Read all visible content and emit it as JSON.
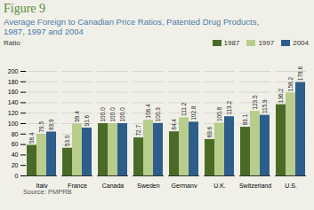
{
  "chart_data": {
    "type": "bar",
    "title": "Figure 9",
    "subtitle": "Average Foreign to Canadian Price Ratios, Patented Drug Products,\n1987, 1997 and 2004",
    "ylabel": "Ratio",
    "caption": "Source: PMPRB",
    "categories": [
      "Italy",
      "France",
      "Canada",
      "Sweden",
      "Germany",
      "U.K.",
      "Switzerland",
      "U.S."
    ],
    "series": [
      {
        "name": "1987",
        "color": "#4a6b28",
        "values": [
          58.4,
          53.0,
          100.0,
          72.7,
          84.4,
          69.6,
          93.1,
          136.2
        ],
        "value_labels": [
          "58.4",
          "53.0",
          "100.0",
          "72.7",
          "84.4",
          "69.6",
          "93.1",
          "136.2"
        ]
      },
      {
        "name": "1997",
        "color": "#b8cc8c",
        "values": [
          79.5,
          99.4,
          100.0,
          106.4,
          111.2,
          100.8,
          123.5,
          158.2
        ],
        "value_labels": [
          "79.5",
          "99.4",
          "100.0",
          "106.4",
          "111.2",
          "100.8",
          "123.5",
          "158.2"
        ]
      },
      {
        "name": "2004",
        "color": "#2d5d8a",
        "values": [
          83.9,
          91.6,
          100.0,
          100.3,
          102.8,
          113.2,
          115.9,
          178.6
        ],
        "value_labels": [
          "83.9",
          "91.6",
          "100.0",
          "100.3",
          "102.8",
          "113.2",
          "115.9",
          "178.6"
        ]
      }
    ],
    "ylim": [
      0,
      200
    ],
    "yticks": [
      0,
      20,
      40,
      60,
      80,
      100,
      120,
      140,
      160,
      180,
      200
    ],
    "grid": true,
    "legend": "top",
    "data_labels": true
  }
}
